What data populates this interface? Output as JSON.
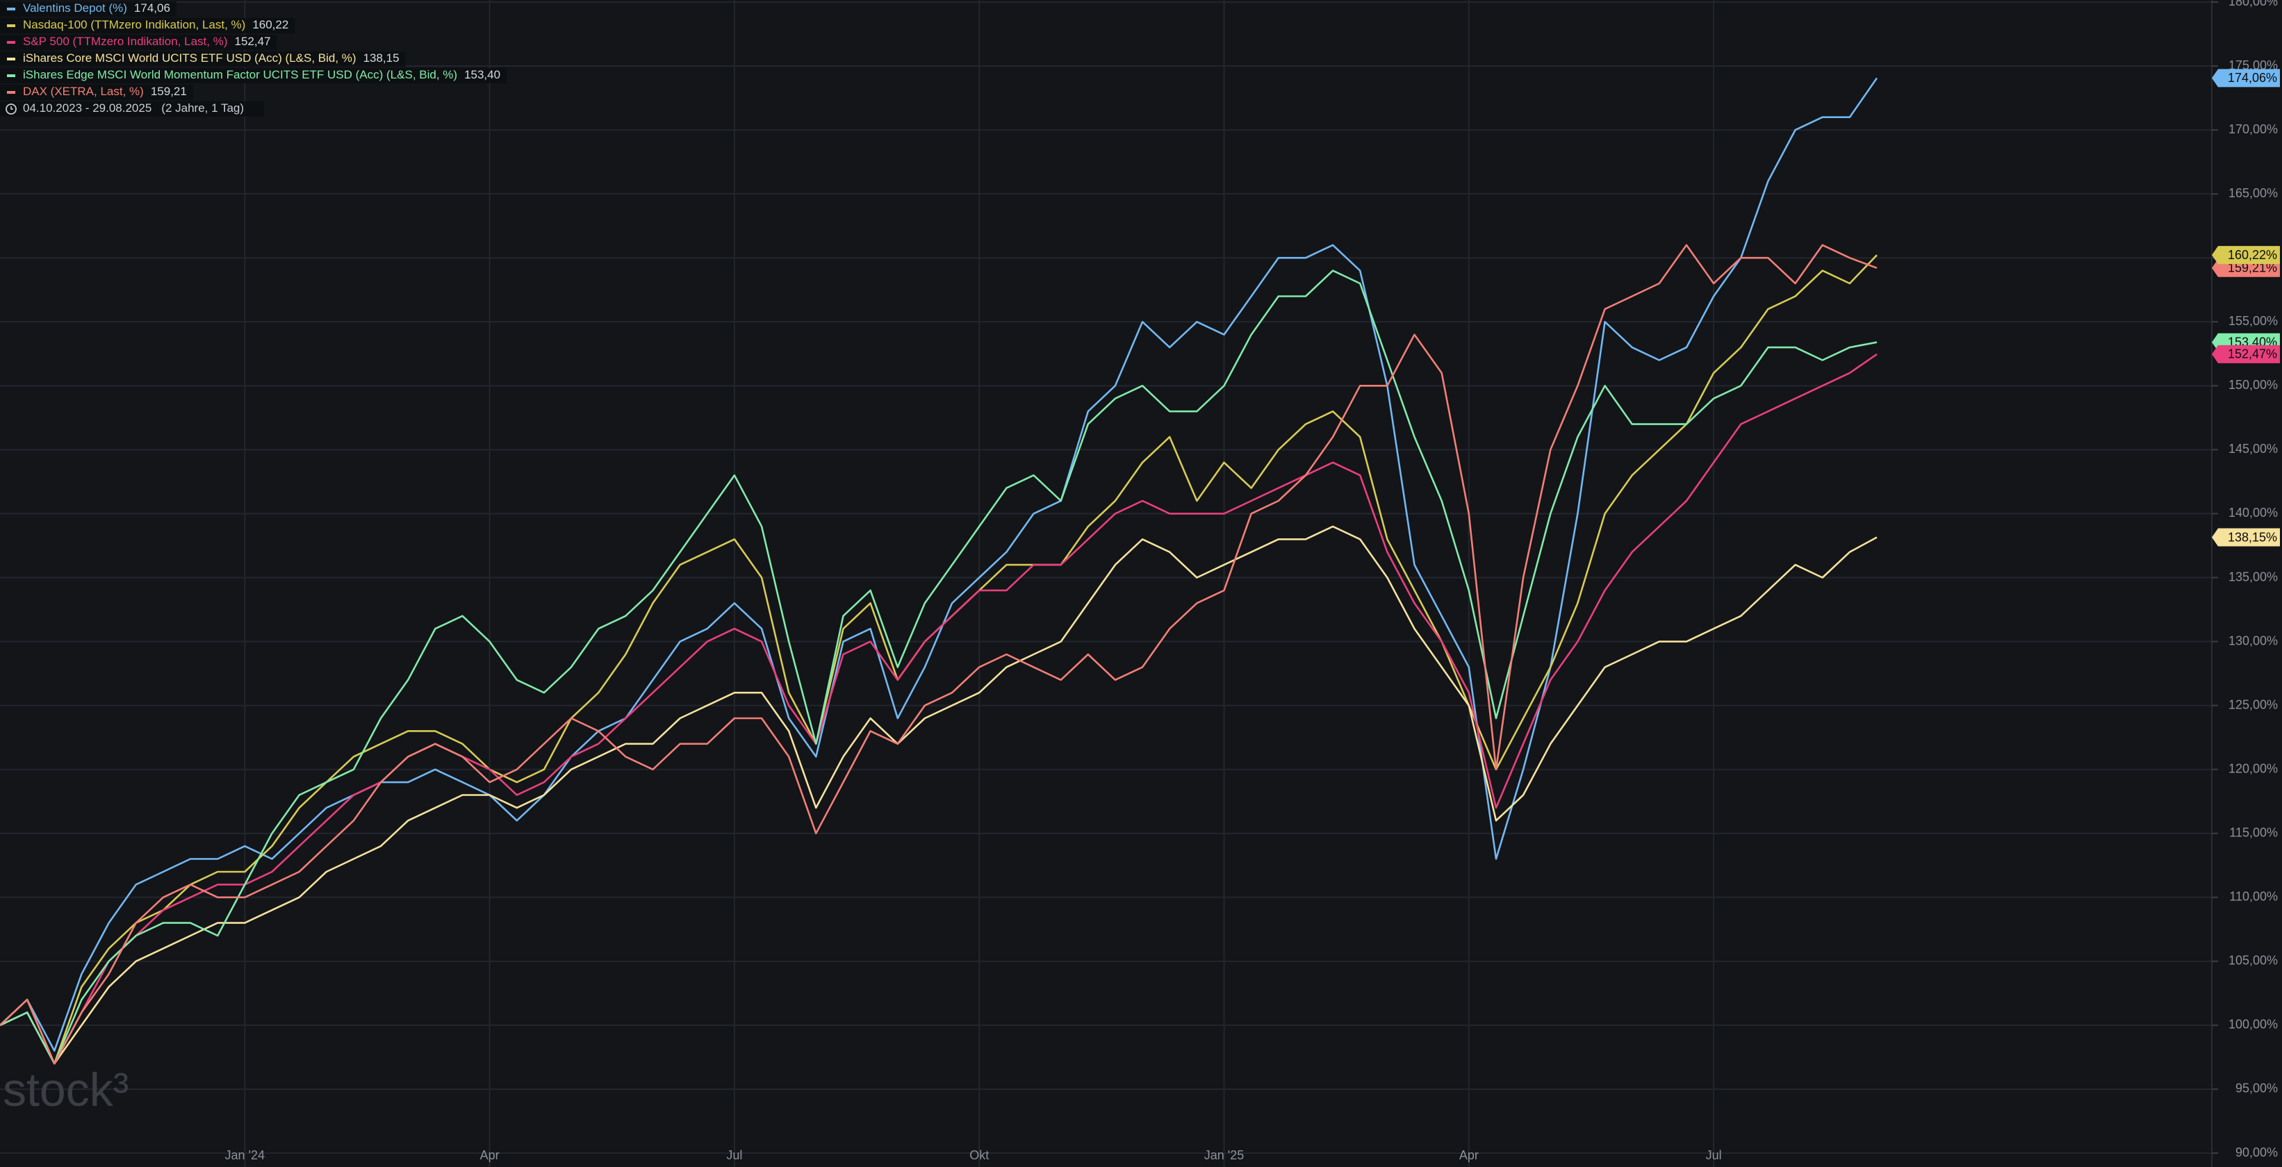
{
  "chart_data": {
    "type": "line",
    "range": "04.10.2023 - 29.08.2025",
    "range_note": "(2 Jahre, 1 Tag)",
    "watermark": "stock³",
    "categories": [
      null,
      null,
      null,
      null,
      null,
      null,
      null,
      null,
      null,
      "Jan '24",
      null,
      null,
      null,
      null,
      null,
      null,
      null,
      null,
      "Apr",
      null,
      null,
      null,
      null,
      null,
      null,
      null,
      null,
      "Jul",
      null,
      null,
      null,
      null,
      null,
      null,
      null,
      null,
      "Okt",
      null,
      null,
      null,
      null,
      null,
      null,
      null,
      null,
      "Jan '25",
      null,
      null,
      null,
      null,
      null,
      null,
      null,
      null,
      "Apr",
      null,
      null,
      null,
      null,
      null,
      null,
      null,
      null,
      "Jul",
      null,
      null,
      null,
      null,
      null,
      null
    ],
    "ylim": [
      90,
      180
    ],
    "yticks": [
      {
        "value": 90,
        "label": "90,00%"
      },
      {
        "value": 95,
        "label": "95,00%"
      },
      {
        "value": 100,
        "label": "100,00%"
      },
      {
        "value": 105,
        "label": "105,00%"
      },
      {
        "value": 110,
        "label": "110,00%"
      },
      {
        "value": 115,
        "label": "115,00%"
      },
      {
        "value": 120,
        "label": "120,00%"
      },
      {
        "value": 125,
        "label": "125,00%"
      },
      {
        "value": 130,
        "label": "130,00%"
      },
      {
        "value": 135,
        "label": "135,00%"
      },
      {
        "value": 140,
        "label": "140,00%"
      },
      {
        "value": 145,
        "label": "145,00%"
      },
      {
        "value": 150,
        "label": "150,00%"
      },
      {
        "value": 155,
        "label": "155,00%"
      },
      {
        "value": 160,
        "label": "160,00%"
      },
      {
        "value": 165,
        "label": "165,00%"
      },
      {
        "value": 170,
        "label": "170,00%"
      },
      {
        "value": 175,
        "label": "175,00%"
      },
      {
        "value": 180,
        "label": "180,00%"
      }
    ],
    "grid": true,
    "series": [
      {
        "name": "Valentins Depot (%)",
        "legend_value": "174,06",
        "end_label": "174,06%",
        "color": "#72b8f2",
        "values": [
          100,
          102,
          98,
          104,
          108,
          111,
          112,
          113,
          113,
          114,
          113,
          115,
          117,
          118,
          119,
          119,
          120,
          119,
          118,
          116,
          118,
          121,
          123,
          124,
          127,
          130,
          131,
          133,
          131,
          124,
          121,
          130,
          131,
          124,
          128,
          133,
          135,
          137,
          140,
          141,
          148,
          150,
          155,
          153,
          155,
          154,
          157,
          160,
          160,
          161,
          159,
          150,
          136,
          132,
          128,
          113,
          120,
          128,
          140,
          155,
          153,
          152,
          153,
          157,
          160,
          166,
          170,
          171,
          171,
          174.06
        ]
      },
      {
        "name": "Nasdaq-100 (TTMzero Indikation, Last, %)",
        "legend_value": "160,22",
        "end_label": "160,22%",
        "color": "#d8cb52",
        "values": [
          100,
          102,
          97,
          103,
          106,
          108,
          109,
          111,
          112,
          112,
          114,
          117,
          119,
          121,
          122,
          123,
          123,
          122,
          120,
          119,
          120,
          124,
          126,
          129,
          133,
          136,
          137,
          138,
          135,
          126,
          122,
          131,
          133,
          127,
          130,
          132,
          134,
          136,
          136,
          136,
          139,
          141,
          144,
          146,
          141,
          144,
          142,
          145,
          147,
          148,
          146,
          138,
          134,
          130,
          125,
          120,
          124,
          128,
          133,
          140,
          143,
          145,
          147,
          151,
          153,
          156,
          157,
          159,
          158,
          160.22
        ]
      },
      {
        "name": "S&P 500 (TTMzero Indikation, Last, %)",
        "legend_value": "152,47",
        "end_label": "152,47%",
        "color": "#ea3f7c",
        "values": [
          100,
          101,
          97,
          101,
          105,
          107,
          109,
          110,
          111,
          111,
          112,
          114,
          116,
          118,
          119,
          121,
          122,
          121,
          120,
          118,
          119,
          121,
          122,
          124,
          126,
          128,
          130,
          131,
          130,
          125,
          122,
          129,
          130,
          127,
          130,
          132,
          134,
          134,
          136,
          136,
          138,
          140,
          141,
          140,
          140,
          140,
          141,
          142,
          143,
          144,
          143,
          137,
          133,
          130,
          126,
          117,
          122,
          127,
          130,
          134,
          137,
          139,
          141,
          144,
          147,
          148,
          149,
          150,
          151,
          152.47
        ]
      },
      {
        "name": "iShares Core MSCI World UCITS ETF USD (Acc) (L&S, Bid, %)",
        "legend_value": "138,15",
        "end_label": "138,15%",
        "color": "#f6e29c",
        "values": [
          100,
          101,
          97,
          100,
          103,
          105,
          106,
          107,
          108,
          108,
          109,
          110,
          112,
          113,
          114,
          116,
          117,
          118,
          118,
          117,
          118,
          120,
          121,
          122,
          122,
          124,
          125,
          126,
          126,
          123,
          117,
          121,
          124,
          122,
          124,
          125,
          126,
          128,
          129,
          130,
          133,
          136,
          138,
          137,
          135,
          136,
          137,
          138,
          138,
          139,
          138,
          135,
          131,
          128,
          125,
          116,
          118,
          122,
          125,
          128,
          129,
          130,
          130,
          131,
          132,
          134,
          136,
          135,
          137,
          138.15
        ]
      },
      {
        "name": "iShares Edge MSCI World Momentum Factor UCITS ETF USD (Acc) (L&S, Bid, %)",
        "legend_value": "153,40",
        "end_label": "153,40%",
        "color": "#82eaaa",
        "values": [
          100,
          101,
          97,
          102,
          105,
          107,
          108,
          108,
          107,
          111,
          115,
          118,
          119,
          120,
          124,
          127,
          131,
          132,
          130,
          127,
          126,
          128,
          131,
          132,
          134,
          137,
          140,
          143,
          139,
          130,
          122,
          132,
          134,
          128,
          133,
          136,
          139,
          142,
          143,
          141,
          147,
          149,
          150,
          148,
          148,
          150,
          154,
          157,
          157,
          159,
          158,
          152,
          146,
          141,
          134,
          124,
          132,
          140,
          146,
          150,
          147,
          147,
          147,
          149,
          150,
          153,
          153,
          152,
          153,
          153.4
        ]
      },
      {
        "name": "DAX (XETRA, Last, %)",
        "legend_value": "159,21",
        "end_label": "159,21%",
        "color": "#f27f76",
        "values": [
          100,
          102,
          97,
          101,
          104,
          108,
          110,
          111,
          110,
          110,
          111,
          112,
          114,
          116,
          119,
          121,
          122,
          121,
          119,
          120,
          122,
          124,
          123,
          121,
          120,
          122,
          122,
          124,
          124,
          121,
          115,
          119,
          123,
          122,
          125,
          126,
          128,
          129,
          128,
          127,
          129,
          127,
          128,
          131,
          133,
          134,
          140,
          141,
          143,
          146,
          150,
          150,
          154,
          151,
          140,
          120,
          135,
          145,
          150,
          156,
          157,
          158,
          161,
          158,
          160,
          160,
          158,
          161,
          160,
          159.21
        ]
      }
    ]
  }
}
